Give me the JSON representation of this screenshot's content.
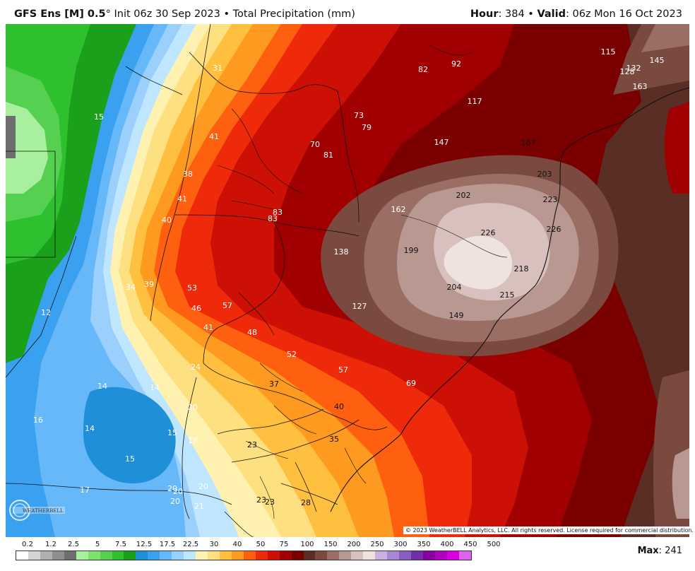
{
  "header": {
    "model": "GFS Ens [M] 0.5",
    "degree": "°",
    "init": "Init 06z 30 Sep 2023",
    "bullet": "•",
    "field": "Total Precipitation (mm)",
    "hour_label": "Hour",
    "hour_value": ": 384",
    "valid_label": "Valid",
    "valid_value": ": 06z Mon 16 Oct 2023"
  },
  "map": {
    "labels_white": [
      "31",
      "15",
      "41",
      "38",
      "41",
      "40",
      "34",
      "39",
      "53",
      "46",
      "57",
      "41",
      "48",
      "12",
      "24",
      "14",
      "14",
      "16",
      "14",
      "20",
      "15",
      "15",
      "18",
      "17",
      "20",
      "20",
      "20",
      "20",
      "21",
      "52",
      "57",
      "69",
      "70",
      "81",
      "73",
      "79",
      "83",
      "83",
      "82",
      "92",
      "117",
      "147",
      "127",
      "138",
      "162",
      "115",
      "128",
      "132",
      "145",
      "163"
    ],
    "labels_dark": [
      "37",
      "40",
      "35",
      "23",
      "23",
      "23",
      "28",
      "202",
      "199",
      "226",
      "204",
      "218",
      "215",
      "223",
      "226",
      "203",
      "167",
      "149"
    ]
  },
  "copyright": "© 2023 WeatherBELL Analytics, LLC. All rights reserved. License required for commercial distribution.",
  "logo": {
    "text": "WEATHERBELL",
    "icon": "weatherbell-logo-icon"
  },
  "colorbar": {
    "ticks": [
      "0.2",
      "1.2",
      "2.5",
      "5",
      "7.5",
      "12.5",
      "17.5",
      "22.5",
      "30",
      "40",
      "50",
      "75",
      "100",
      "150",
      "200",
      "250",
      "300",
      "350",
      "400",
      "450",
      "500"
    ],
    "colors": [
      "#ffffff",
      "#d4d4d4",
      "#b0b0b0",
      "#8e8e8e",
      "#6e6e6e",
      "#a8f0a0",
      "#7fe070",
      "#56d050",
      "#2ec02e",
      "#1aa01a",
      "#1f8fd8",
      "#3aa0f0",
      "#66b8f8",
      "#9ad0fb",
      "#bfe6ff",
      "#fff2b0",
      "#ffe080",
      "#ffc040",
      "#ff9a20",
      "#ff6010",
      "#ee2a0a",
      "#cc1005",
      "#a00000",
      "#7a0000",
      "#5a2e25",
      "#7a4a40",
      "#9a6e64",
      "#b89890",
      "#d8c0bc",
      "#efe3e0",
      "#c8b0e0",
      "#a888d0",
      "#8a5ec0",
      "#7030a8",
      "#8800a0",
      "#b000c0",
      "#d800e0",
      "#e060f0"
    ],
    "accent_pink": "#e030e0"
  },
  "max": {
    "label": "Max",
    "value": ": 241"
  }
}
